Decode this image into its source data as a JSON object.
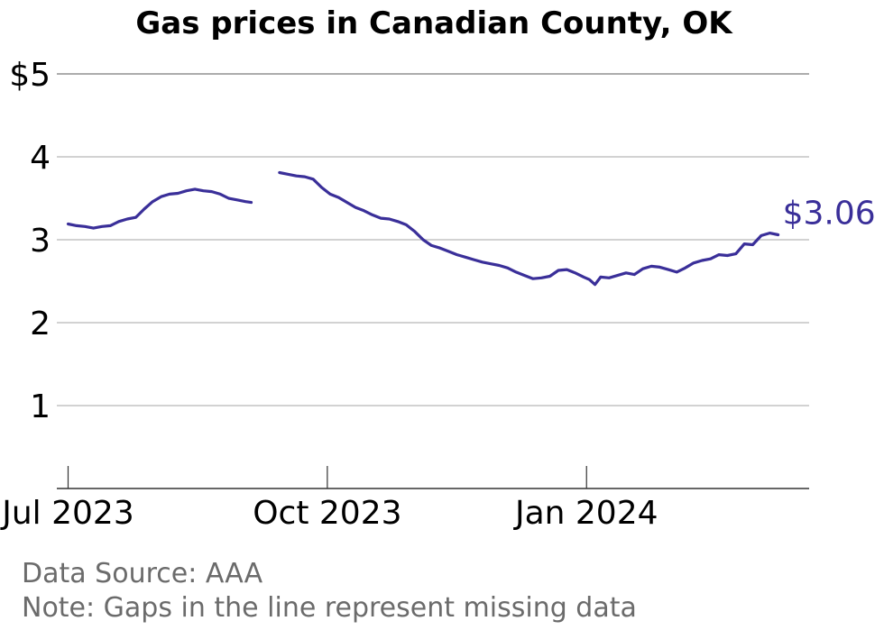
{
  "chart_data": {
    "type": "line",
    "title": "Gas prices in Canadian County, OK",
    "xlabel": "",
    "ylabel": "",
    "xlim": [
      "2023-06-27",
      "2024-03-20"
    ],
    "ylim": [
      0,
      5
    ],
    "y_ticks": [
      {
        "value": 1,
        "label": "1"
      },
      {
        "value": 2,
        "label": "2"
      },
      {
        "value": 3,
        "label": "3"
      },
      {
        "value": 4,
        "label": "4"
      },
      {
        "value": 5,
        "label": "$5"
      }
    ],
    "x_ticks": [
      {
        "date": "2023-07-01",
        "label": "Jul 2023"
      },
      {
        "date": "2023-10-01",
        "label": "Oct 2023"
      },
      {
        "date": "2024-01-01",
        "label": "Jan 2024"
      }
    ],
    "grid": true,
    "color": "#3a2f99",
    "end_label": "$3.06",
    "series": [
      {
        "segments": [
          [
            [
              "2023-07-01",
              3.19
            ],
            [
              "2023-07-04",
              3.17
            ],
            [
              "2023-07-07",
              3.16
            ],
            [
              "2023-07-10",
              3.14
            ],
            [
              "2023-07-13",
              3.16
            ],
            [
              "2023-07-16",
              3.17
            ],
            [
              "2023-07-19",
              3.22
            ],
            [
              "2023-07-22",
              3.25
            ],
            [
              "2023-07-25",
              3.27
            ],
            [
              "2023-07-28",
              3.37
            ],
            [
              "2023-07-31",
              3.46
            ],
            [
              "2023-08-03",
              3.52
            ],
            [
              "2023-08-06",
              3.55
            ],
            [
              "2023-08-09",
              3.56
            ],
            [
              "2023-08-12",
              3.59
            ],
            [
              "2023-08-15",
              3.61
            ],
            [
              "2023-08-18",
              3.59
            ],
            [
              "2023-08-21",
              3.58
            ],
            [
              "2023-08-24",
              3.55
            ],
            [
              "2023-08-27",
              3.5
            ],
            [
              "2023-08-30",
              3.48
            ],
            [
              "2023-09-02",
              3.46
            ],
            [
              "2023-09-04",
              3.45
            ]
          ],
          [
            [
              "2023-09-14",
              3.81
            ],
            [
              "2023-09-17",
              3.79
            ],
            [
              "2023-09-20",
              3.77
            ],
            [
              "2023-09-23",
              3.76
            ],
            [
              "2023-09-26",
              3.73
            ],
            [
              "2023-09-29",
              3.63
            ],
            [
              "2023-10-02",
              3.55
            ],
            [
              "2023-10-05",
              3.51
            ],
            [
              "2023-10-08",
              3.45
            ],
            [
              "2023-10-11",
              3.39
            ],
            [
              "2023-10-14",
              3.35
            ],
            [
              "2023-10-17",
              3.3
            ],
            [
              "2023-10-20",
              3.26
            ],
            [
              "2023-10-23",
              3.25
            ],
            [
              "2023-10-26",
              3.22
            ],
            [
              "2023-10-29",
              3.18
            ],
            [
              "2023-11-01",
              3.1
            ],
            [
              "2023-11-04",
              3.0
            ],
            [
              "2023-11-07",
              2.93
            ],
            [
              "2023-11-10",
              2.9
            ],
            [
              "2023-11-13",
              2.86
            ],
            [
              "2023-11-16",
              2.82
            ],
            [
              "2023-11-19",
              2.79
            ],
            [
              "2023-11-22",
              2.76
            ],
            [
              "2023-11-25",
              2.73
            ],
            [
              "2023-11-28",
              2.71
            ],
            [
              "2023-12-01",
              2.69
            ],
            [
              "2023-12-04",
              2.66
            ],
            [
              "2023-12-07",
              2.61
            ],
            [
              "2023-12-10",
              2.57
            ],
            [
              "2023-12-13",
              2.53
            ],
            [
              "2023-12-16",
              2.54
            ],
            [
              "2023-12-19",
              2.56
            ],
            [
              "2023-12-22",
              2.63
            ],
            [
              "2023-12-25",
              2.64
            ],
            [
              "2023-12-28",
              2.6
            ],
            [
              "2023-12-31",
              2.55
            ],
            [
              "2024-01-02",
              2.52
            ],
            [
              "2024-01-04",
              2.46
            ],
            [
              "2024-01-06",
              2.55
            ],
            [
              "2024-01-09",
              2.54
            ],
            [
              "2024-01-12",
              2.57
            ],
            [
              "2024-01-15",
              2.6
            ],
            [
              "2024-01-18",
              2.58
            ],
            [
              "2024-01-21",
              2.65
            ],
            [
              "2024-01-24",
              2.68
            ],
            [
              "2024-01-27",
              2.67
            ],
            [
              "2024-01-30",
              2.64
            ],
            [
              "2024-02-02",
              2.61
            ],
            [
              "2024-02-05",
              2.66
            ],
            [
              "2024-02-08",
              2.72
            ],
            [
              "2024-02-11",
              2.75
            ],
            [
              "2024-02-14",
              2.77
            ],
            [
              "2024-02-17",
              2.82
            ],
            [
              "2024-02-20",
              2.81
            ],
            [
              "2024-02-23",
              2.83
            ],
            [
              "2024-02-26",
              2.95
            ],
            [
              "2024-02-29",
              2.94
            ],
            [
              "2024-03-03",
              3.05
            ],
            [
              "2024-03-06",
              3.08
            ],
            [
              "2024-03-09",
              3.06
            ]
          ]
        ]
      }
    ]
  },
  "footer": {
    "source": "Data Source: AAA",
    "note": "Note: Gaps in the line represent missing data"
  }
}
